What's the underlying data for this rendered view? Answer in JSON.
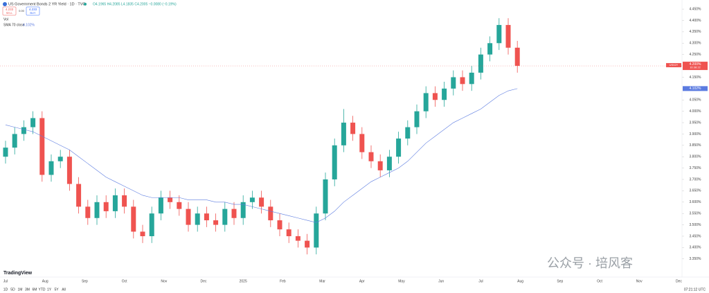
{
  "header": {
    "symbol": "US Government Bonds 2 YR Yield · 1D · TVC",
    "ohlc": "O4.1965 H4.2085 L4.1835 C4.2005 −0.0080 (−0.19%)",
    "sell_price": "4.233",
    "sell": "SELL",
    "spread": "0.00",
    "buy_price": "4.233",
    "buy": "BUY"
  },
  "indicators": {
    "volume": "Vol",
    "sma_label": "SMA 70 close",
    "sma_value": "4.102%"
  },
  "price_tag": {
    "symbol": "US02Y",
    "value": "4.200%",
    "countdown": "16:38:22"
  },
  "chart_data": {
    "type": "candlestick",
    "x_labels": [
      "Jul",
      "Aug",
      "Sep",
      "Oct",
      "Nov",
      "Dec",
      "2025",
      "Feb",
      "Mar",
      "Apr",
      "May",
      "Jun",
      "Jul",
      "Aug",
      "Sep",
      "Oct",
      "Nov",
      "Dec"
    ],
    "series": [
      {
        "name": "US02Y",
        "up_color": "#26a69a",
        "down_color": "#ef5350",
        "open": [
          3.8,
          3.84,
          3.9,
          3.93,
          3.97,
          3.72,
          3.78,
          3.8,
          3.68,
          3.58,
          3.53,
          3.6,
          3.56,
          3.63,
          3.58,
          3.47,
          3.45,
          3.55,
          3.62,
          3.6,
          3.57,
          3.5,
          3.55,
          3.52,
          3.5,
          3.57,
          3.53,
          3.6,
          3.62,
          3.58,
          3.52,
          3.48,
          3.45,
          3.43,
          3.4,
          3.55,
          3.7,
          3.85,
          3.95,
          3.9,
          3.82,
          3.78,
          3.74,
          3.8,
          3.88,
          3.93,
          4.0,
          4.08,
          4.05,
          4.1,
          4.15,
          4.12,
          4.17,
          4.25,
          4.3,
          4.38,
          4.28
        ],
        "high": [
          3.87,
          3.93,
          3.96,
          4.0,
          4.0,
          3.81,
          3.83,
          3.83,
          3.71,
          3.61,
          3.63,
          3.63,
          3.66,
          3.66,
          3.61,
          3.5,
          3.58,
          3.65,
          3.65,
          3.63,
          3.6,
          3.58,
          3.58,
          3.55,
          3.6,
          3.6,
          3.63,
          3.65,
          3.65,
          3.61,
          3.55,
          3.51,
          3.48,
          3.46,
          3.58,
          3.73,
          3.88,
          4.01,
          3.98,
          3.93,
          3.85,
          3.81,
          3.83,
          3.91,
          3.96,
          4.03,
          4.11,
          4.11,
          4.13,
          4.18,
          4.18,
          4.2,
          4.28,
          4.33,
          4.41,
          4.41,
          4.31
        ],
        "low": [
          3.77,
          3.81,
          3.87,
          3.9,
          3.69,
          3.69,
          3.75,
          3.65,
          3.55,
          3.5,
          3.5,
          3.53,
          3.53,
          3.55,
          3.44,
          3.42,
          3.42,
          3.52,
          3.57,
          3.54,
          3.47,
          3.47,
          3.49,
          3.47,
          3.47,
          3.5,
          3.5,
          3.57,
          3.55,
          3.49,
          3.45,
          3.42,
          3.4,
          3.37,
          3.37,
          3.52,
          3.67,
          3.82,
          3.87,
          3.79,
          3.75,
          3.71,
          3.71,
          3.77,
          3.85,
          3.9,
          3.97,
          4.02,
          4.02,
          4.07,
          4.09,
          4.09,
          4.14,
          4.22,
          4.27,
          4.25,
          4.17
        ],
        "close": [
          3.84,
          3.9,
          3.93,
          3.97,
          3.72,
          3.78,
          3.8,
          3.68,
          3.58,
          3.53,
          3.6,
          3.56,
          3.63,
          3.58,
          3.47,
          3.45,
          3.55,
          3.62,
          3.6,
          3.57,
          3.5,
          3.55,
          3.52,
          3.5,
          3.57,
          3.53,
          3.6,
          3.62,
          3.58,
          3.52,
          3.48,
          3.45,
          3.43,
          3.4,
          3.55,
          3.7,
          3.85,
          3.95,
          3.9,
          3.82,
          3.78,
          3.74,
          3.8,
          3.88,
          3.93,
          4.0,
          4.08,
          4.05,
          4.1,
          4.15,
          4.12,
          4.17,
          4.25,
          4.3,
          4.38,
          4.28,
          4.2
        ]
      },
      {
        "name": "SMA 70",
        "color": "#5b7be0",
        "values": [
          3.94,
          3.93,
          3.92,
          3.91,
          3.89,
          3.87,
          3.85,
          3.83,
          3.8,
          3.77,
          3.74,
          3.71,
          3.69,
          3.67,
          3.65,
          3.63,
          3.62,
          3.62,
          3.62,
          3.62,
          3.61,
          3.61,
          3.61,
          3.6,
          3.6,
          3.59,
          3.59,
          3.58,
          3.57,
          3.56,
          3.55,
          3.54,
          3.53,
          3.52,
          3.51,
          3.53,
          3.56,
          3.6,
          3.63,
          3.66,
          3.69,
          3.71,
          3.73,
          3.75,
          3.78,
          3.82,
          3.86,
          3.89,
          3.92,
          3.95,
          3.97,
          3.99,
          4.01,
          4.04,
          4.07,
          4.09,
          4.1
        ]
      }
    ],
    "ylim": [
      3.27,
      4.49
    ],
    "yticks": [
      {
        "value": 4.45,
        "label": "4.450%"
      },
      {
        "value": 4.4,
        "label": "4.400%"
      },
      {
        "value": 4.35,
        "label": "4.350%"
      },
      {
        "value": 4.3,
        "label": "4.300%"
      },
      {
        "value": 4.25,
        "label": "4.250%"
      },
      {
        "value": 4.15,
        "label": "4.150%"
      },
      {
        "value": 4.05,
        "label": "4.050%"
      },
      {
        "value": 4.0,
        "label": "4.000%"
      },
      {
        "value": 3.95,
        "label": "3.950%"
      },
      {
        "value": 3.9,
        "label": "3.900%"
      },
      {
        "value": 3.85,
        "label": "3.850%"
      },
      {
        "value": 3.8,
        "label": "3.800%"
      },
      {
        "value": 3.75,
        "label": "3.750%"
      },
      {
        "value": 3.7,
        "label": "3.700%"
      },
      {
        "value": 3.65,
        "label": "3.650%"
      },
      {
        "value": 3.6,
        "label": "3.600%"
      },
      {
        "value": 3.55,
        "label": "3.550%"
      },
      {
        "value": 3.5,
        "label": "3.500%"
      },
      {
        "value": 3.45,
        "label": "3.450%"
      },
      {
        "value": 3.4,
        "label": "3.400%"
      },
      {
        "value": 3.35,
        "label": "3.350%"
      }
    ]
  },
  "footer": {
    "ranges": [
      "1D",
      "5D",
      "1M",
      "3M",
      "6M",
      "YTD",
      "1Y",
      "5Y",
      "All"
    ],
    "clock": "07:21:12 UTC",
    "brand": "TradingView",
    "watermark": "公众号 · 培风客"
  }
}
